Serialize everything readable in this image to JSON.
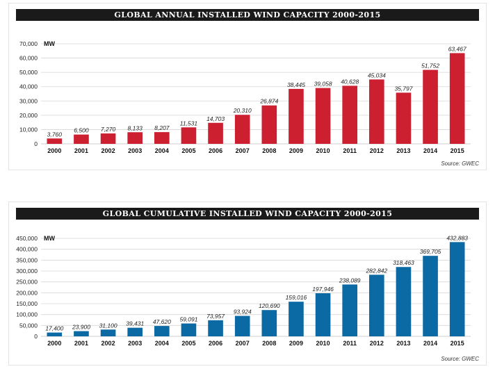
{
  "chart_data": [
    {
      "type": "bar",
      "title": "GLOBAL ANNUAL INSTALLED WIND CAPACITY 2000-2015",
      "ylabel": "MW",
      "xlabel": "",
      "ylim": [
        0,
        70000
      ],
      "yticks": [
        0,
        10000,
        20000,
        30000,
        40000,
        50000,
        60000,
        70000
      ],
      "ytick_labels": [
        "0",
        "10,000",
        "20,000",
        "30,000",
        "40,000",
        "50,000",
        "60,000",
        "70,000"
      ],
      "categories": [
        "2000",
        "2001",
        "2002",
        "2003",
        "2004",
        "2005",
        "2006",
        "2007",
        "2008",
        "2009",
        "2010",
        "2011",
        "2012",
        "2013",
        "2014",
        "2015"
      ],
      "values": [
        3760,
        6500,
        7270,
        8133,
        8207,
        11531,
        14703,
        20310,
        26874,
        38445,
        39058,
        40628,
        45034,
        35797,
        51752,
        63467
      ],
      "data_labels": [
        "3,760",
        "6,500",
        "7,270",
        "8,133",
        "8,207",
        "11,531",
        "14,703",
        "20,310",
        "26,874",
        "38,445",
        "39,058",
        "40,628",
        "45,034",
        "35,797",
        "51,752",
        "63,467"
      ],
      "bar_color": "#cc1f30",
      "grid": true,
      "source": "Source: GWEC"
    },
    {
      "type": "bar",
      "title": "GLOBAL CUMULATIVE INSTALLED WIND CAPACITY 2000-2015",
      "ylabel": "MW",
      "xlabel": "",
      "ylim": [
        0,
        450000
      ],
      "yticks": [
        0,
        50000,
        100000,
        150000,
        200000,
        250000,
        300000,
        350000,
        400000,
        450000
      ],
      "ytick_labels": [
        "0",
        "50,000",
        "100,000",
        "150,000",
        "200,000",
        "250,000",
        "300,000",
        "350,000",
        "400,000",
        "450,000"
      ],
      "categories": [
        "2000",
        "2001",
        "2002",
        "2003",
        "2004",
        "2005",
        "2006",
        "2007",
        "2008",
        "2009",
        "2010",
        "2011",
        "2012",
        "2013",
        "2014",
        "2015"
      ],
      "values": [
        17400,
        23900,
        31100,
        39431,
        47620,
        59091,
        73957,
        93924,
        120690,
        159016,
        197946,
        238089,
        282842,
        318463,
        369705,
        432883
      ],
      "data_labels": [
        "17,400",
        "23,900",
        "31,100",
        "39,431",
        "47,620",
        "59,091",
        "73,957",
        "93,924",
        "120,690",
        "159,016",
        "197,946",
        "238,089",
        "282,842",
        "318,463",
        "369,705",
        "432,883"
      ],
      "bar_color": "#0b6aa3",
      "grid": true,
      "source": "Source: GWEC"
    }
  ]
}
